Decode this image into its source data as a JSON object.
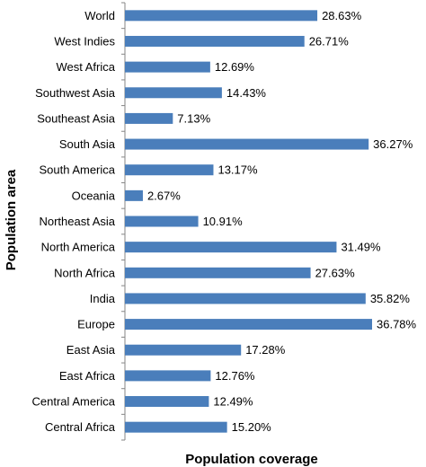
{
  "chart_data": {
    "type": "bar",
    "orientation": "horizontal",
    "xlabel": "Population coverage",
    "ylabel": "Population area",
    "xlim": [
      0,
      36.78
    ],
    "value_suffix": "%",
    "bar_color": "#4a7ebb",
    "categories": [
      "World",
      "West Indies",
      "West Africa",
      "Southwest Asia",
      "Southeast Asia",
      "South Asia",
      "South America",
      "Oceania",
      "Northeast Asia",
      "North America",
      "North Africa",
      "India",
      "Europe",
      "East Asia",
      "East Africa",
      "Central America",
      "Central Africa"
    ],
    "values": [
      28.63,
      26.71,
      12.69,
      14.43,
      7.13,
      36.27,
      13.17,
      2.67,
      10.91,
      31.49,
      27.63,
      35.82,
      36.78,
      17.28,
      12.76,
      12.49,
      15.2
    ],
    "value_labels": [
      "28.63%",
      "26.71%",
      "12.69%",
      "14.43%",
      "7.13%",
      "36.27%",
      "13.17%",
      "2.67%",
      "10.91%",
      "31.49%",
      "27.63%",
      "35.82%",
      "36.78%",
      "17.28%",
      "12.76%",
      "12.49%",
      "15.20%"
    ]
  }
}
